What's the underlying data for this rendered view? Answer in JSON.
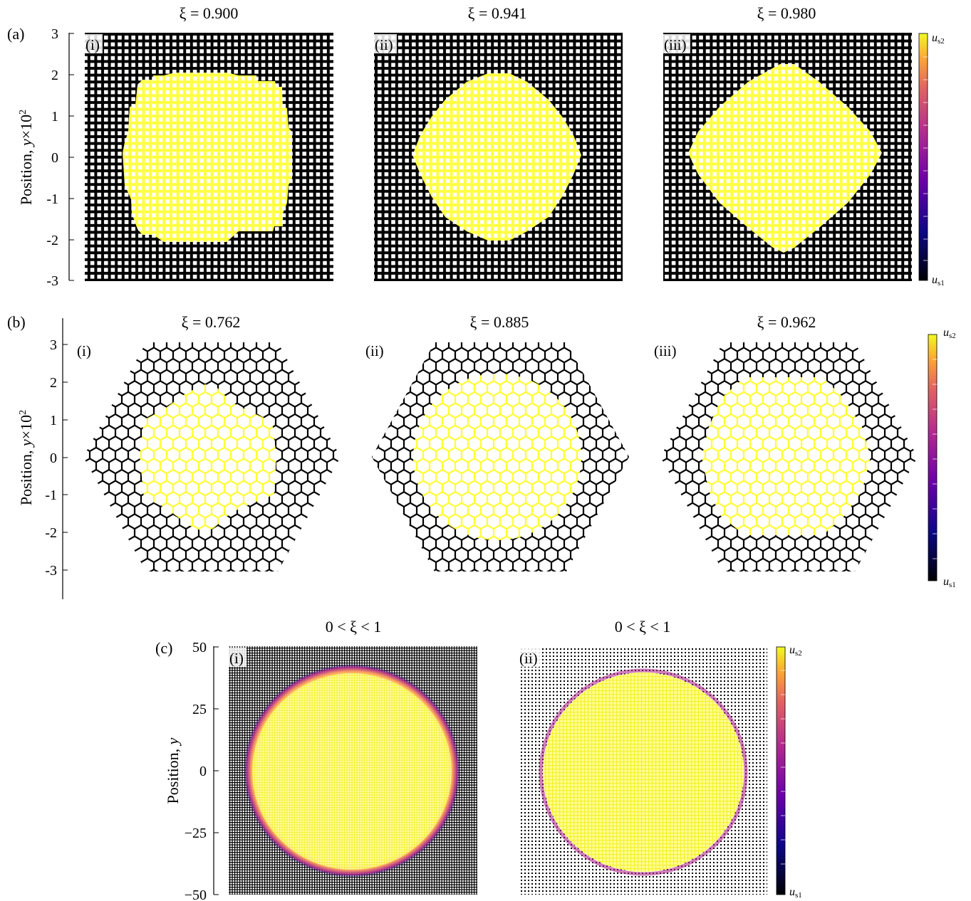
{
  "figure": {
    "row_a": {
      "label": "(a)",
      "ylabel_main": "Position, ",
      "ylabel_var": "y",
      "ylabel_suffix": "×10",
      "ylabel_sup": "2",
      "yticks": [
        "3",
        "2",
        "1",
        "0",
        "-1",
        "-2",
        "-3"
      ],
      "panels": [
        {
          "tag": "(i)",
          "title": "ξ = 0.900"
        },
        {
          "tag": "(ii)",
          "title": "ξ = 0.941"
        },
        {
          "tag": "(iii)",
          "title": "ξ = 0.980"
        }
      ],
      "colorbar": {
        "top": "s2",
        "bottom": "s1",
        "prefix": "u"
      }
    },
    "row_b": {
      "label": "(b)",
      "ylabel_main": "Position, ",
      "ylabel_var": "y",
      "ylabel_suffix": "×10",
      "ylabel_sup": "2",
      "yticks": [
        "3",
        "2",
        "1",
        "0",
        "-1",
        "-2",
        "-3"
      ],
      "panels": [
        {
          "tag": "(i)",
          "title": "ξ = 0.762"
        },
        {
          "tag": "(ii)",
          "title": "ξ = 0.885"
        },
        {
          "tag": "(iii)",
          "title": "ξ = 0.962"
        }
      ],
      "colorbar": {
        "top": "s2",
        "bottom": "s1",
        "prefix": "u"
      }
    },
    "row_c": {
      "label": "(c)",
      "ylabel_main": "Position, ",
      "ylabel_var": "y",
      "yticks": [
        "50",
        "25",
        "0",
        "−25",
        "−50"
      ],
      "panels": [
        {
          "tag": "(i)",
          "title": "0 < ξ < 1"
        },
        {
          "tag": "(ii)",
          "title": "0 < ξ < 1"
        }
      ],
      "colorbar": {
        "top": "s2",
        "bottom": "s1",
        "prefix": "u"
      }
    },
    "colors": {
      "lattice_dark": "#000000",
      "phase_high": "#ffff44",
      "plasma": [
        "#0d0887",
        "#6a00a8",
        "#b12a90",
        "#e16462",
        "#fca636",
        "#f0f921"
      ]
    }
  }
}
